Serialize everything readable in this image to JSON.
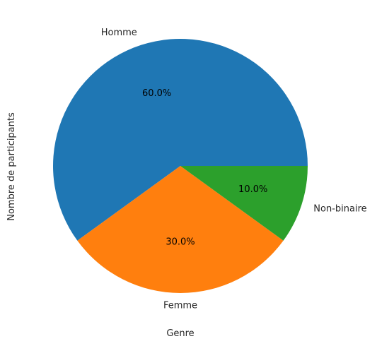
{
  "chart_data": {
    "type": "pie",
    "title": "",
    "xlabel": "Genre",
    "ylabel": "Nombre de participants",
    "start_angle_deg": 0,
    "direction": "counterclockwise",
    "slices": [
      {
        "label": "Homme",
        "value": 60,
        "pct_label": "60.0%",
        "color": "#1f77b4"
      },
      {
        "label": "Femme",
        "value": 30,
        "pct_label": "30.0%",
        "color": "#ff7f0e"
      },
      {
        "label": "Non-binaire",
        "value": 10,
        "pct_label": "10.0%",
        "color": "#2ca02c"
      }
    ]
  }
}
